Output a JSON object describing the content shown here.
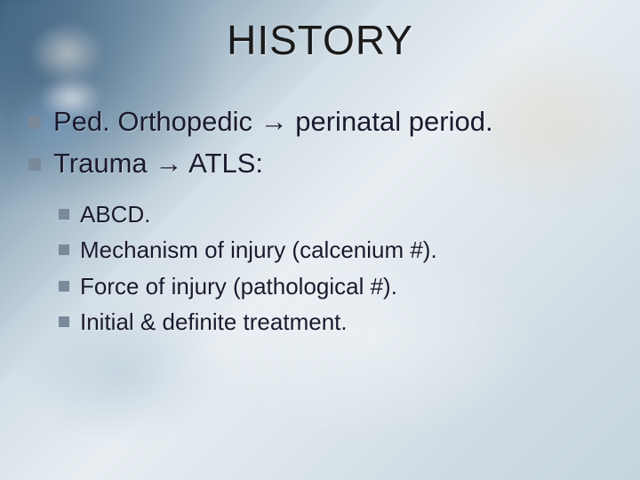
{
  "title": "HISTORY",
  "main": [
    {
      "text_a": "Ped. Orthopedic ",
      "arrow": "→",
      "text_b": "  perinatal period."
    },
    {
      "text_a": "Trauma ",
      "arrow": "→",
      "text_b": " ATLS:"
    }
  ],
  "sub": [
    "ABCD.",
    "Mechanism of injury (calcenium #).",
    "Force of injury (pathological #).",
    "Initial & definite treatment."
  ],
  "colors": {
    "title": "#1a1a1a",
    "text": "#1a1a2e",
    "bullet": "#7a8a9a"
  },
  "fontsize": {
    "title": 46,
    "main": 31,
    "sub": 26
  }
}
